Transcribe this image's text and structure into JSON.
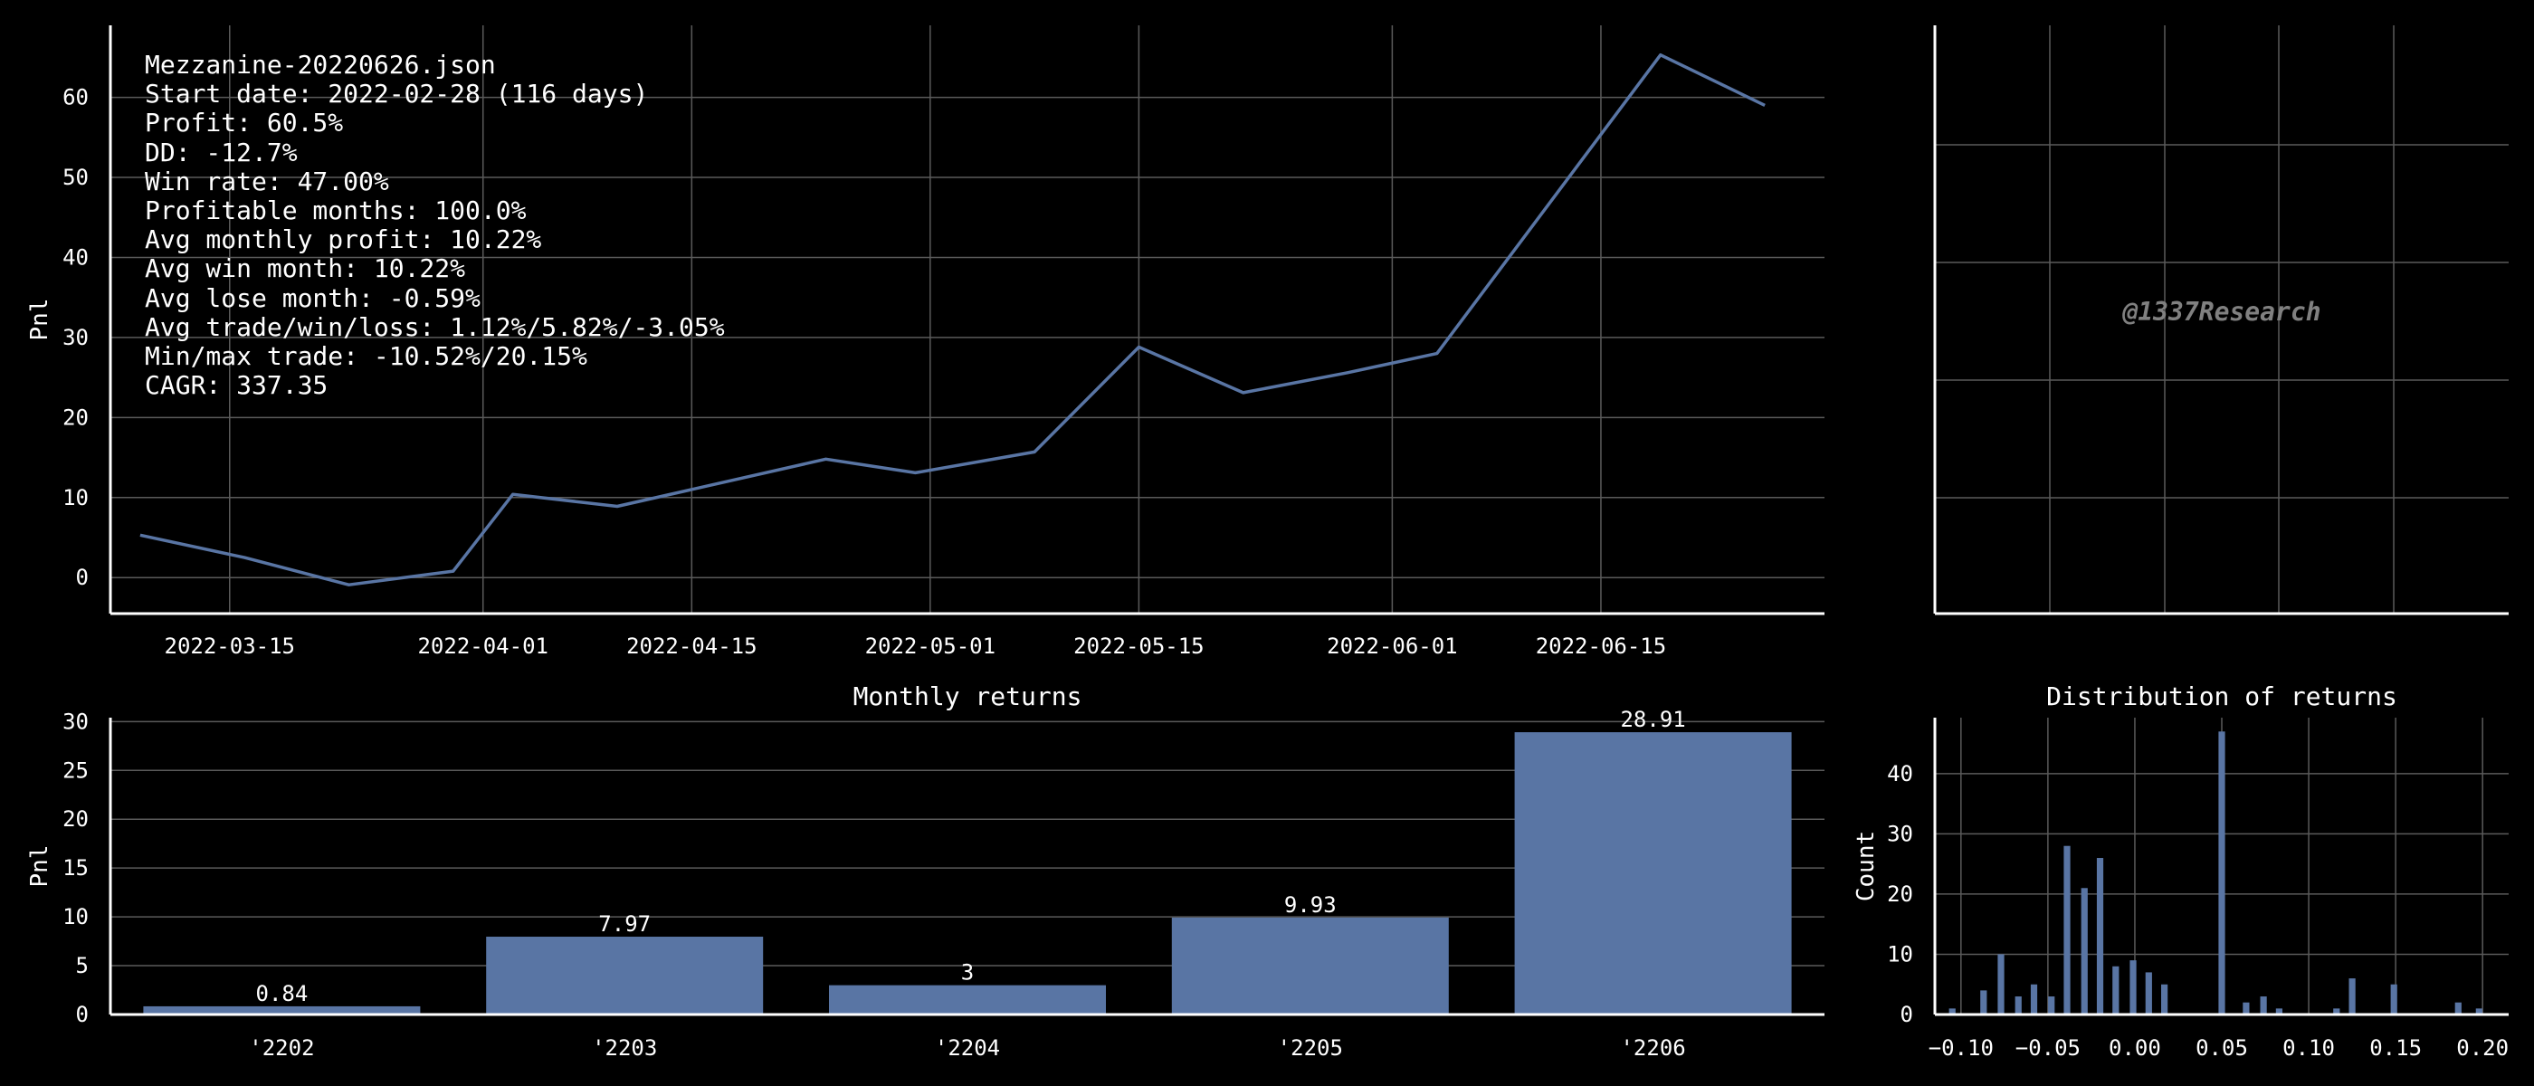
{
  "colors": {
    "background": "#000000",
    "series": "#5975a4",
    "grid": "#5a5a5a",
    "axis": "#ffffff",
    "text": "#ffffff",
    "watermark": "#808080"
  },
  "stats": [
    "Mezzanine-20220626.json",
    "Start date: 2022-02-28 (116 days)",
    "Profit: 60.5%",
    "DD: -12.7%",
    "Win rate: 47.00%",
    "Profitable months: 100.0%",
    "Avg monthly profit: 10.22%",
    "Avg win month: 10.22%",
    "Avg lose month: -0.59%",
    "Avg trade/win/loss: 1.12%/5.82%/-3.05%",
    "Min/max trade: -10.52%/20.15%",
    "CAGR: 337.35"
  ],
  "watermark": "@1337Research",
  "chart_data": [
    {
      "type": "line",
      "title": "",
      "xlabel": "",
      "ylabel": "Pnl",
      "xlim": [
        "2022-03-07",
        "2022-06-30"
      ],
      "ylim": [
        -4.5,
        69
      ],
      "x_ticks": [
        "2022-03-15",
        "2022-04-01",
        "2022-04-15",
        "2022-05-01",
        "2022-05-15",
        "2022-06-01",
        "2022-06-15"
      ],
      "y_ticks": [
        0,
        10,
        20,
        30,
        40,
        50,
        60
      ],
      "grid": true,
      "series": [
        {
          "points": [
            {
              "x": "2022-03-09",
              "y": 5.3
            },
            {
              "x": "2022-03-16",
              "y": 2.5
            },
            {
              "x": "2022-03-23",
              "y": -0.9
            },
            {
              "x": "2022-03-30",
              "y": 0.8
            },
            {
              "x": "2022-04-03",
              "y": 10.4
            },
            {
              "x": "2022-04-10",
              "y": 8.9
            },
            {
              "x": "2022-04-24",
              "y": 14.8
            },
            {
              "x": "2022-04-30",
              "y": 13.1
            },
            {
              "x": "2022-05-08",
              "y": 15.7
            },
            {
              "x": "2022-05-15",
              "y": 28.8
            },
            {
              "x": "2022-05-22",
              "y": 23.1
            },
            {
              "x": "2022-05-29",
              "y": 25.6
            },
            {
              "x": "2022-06-04",
              "y": 28.0
            },
            {
              "x": "2022-06-19",
              "y": 65.3
            },
            {
              "x": "2022-06-26",
              "y": 59.0
            }
          ]
        }
      ]
    },
    {
      "type": "scatter",
      "title": "",
      "xlabel": "",
      "ylabel": "",
      "grid": true,
      "x_ticks": [],
      "y_ticks": [],
      "series": []
    },
    {
      "type": "bar",
      "title": "Monthly returns",
      "xlabel": "",
      "ylabel": "Pnl",
      "ylim": [
        0,
        30.4
      ],
      "y_ticks": [
        0,
        5,
        10,
        15,
        20,
        25,
        30
      ],
      "categories": [
        "'2202",
        "'2203",
        "'2204",
        "'2205",
        "'2206"
      ],
      "values": [
        0.84,
        7.97,
        3,
        9.93,
        28.91
      ],
      "data_labels": [
        "0.84",
        "7.97",
        "3",
        "9.93",
        "28.91"
      ],
      "grid": true
    },
    {
      "type": "bar",
      "title": "Distribution of returns",
      "xlabel": "",
      "ylabel": "Count",
      "xlim": [
        -0.115,
        0.215
      ],
      "ylim": [
        0,
        49.3
      ],
      "x_ticks": [
        "−0.10",
        "−0.05",
        "0.00",
        "0.05",
        "0.10",
        "0.15",
        "0.20"
      ],
      "x_tick_values": [
        -0.1,
        -0.05,
        0.0,
        0.05,
        0.1,
        0.15,
        0.2
      ],
      "y_ticks": [
        0,
        10,
        20,
        30,
        40
      ],
      "bin_width": 0.00375,
      "bins": [
        {
          "x": -0.105,
          "count": 1
        },
        {
          "x": -0.087,
          "count": 4
        },
        {
          "x": -0.077,
          "count": 10
        },
        {
          "x": -0.067,
          "count": 3
        },
        {
          "x": -0.058,
          "count": 5
        },
        {
          "x": -0.048,
          "count": 3
        },
        {
          "x": -0.039,
          "count": 28
        },
        {
          "x": -0.029,
          "count": 21
        },
        {
          "x": -0.02,
          "count": 26
        },
        {
          "x": -0.011,
          "count": 8
        },
        {
          "x": -0.001,
          "count": 9
        },
        {
          "x": 0.008,
          "count": 7
        },
        {
          "x": 0.017,
          "count": 5
        },
        {
          "x": 0.05,
          "count": 47
        },
        {
          "x": 0.064,
          "count": 2
        },
        {
          "x": 0.074,
          "count": 3
        },
        {
          "x": 0.083,
          "count": 1
        },
        {
          "x": 0.116,
          "count": 1
        },
        {
          "x": 0.125,
          "count": 6
        },
        {
          "x": 0.149,
          "count": 5
        },
        {
          "x": 0.186,
          "count": 2
        },
        {
          "x": 0.198,
          "count": 1
        }
      ],
      "grid": true
    }
  ]
}
